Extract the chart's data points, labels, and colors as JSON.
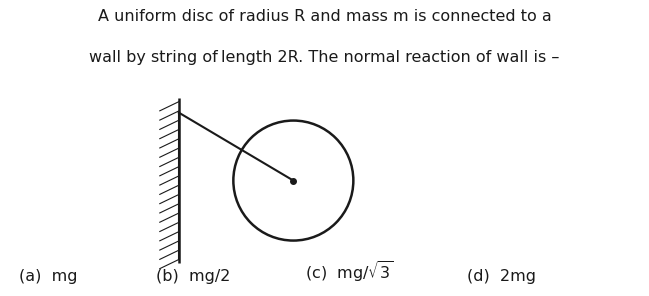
{
  "bg_color": "#ffffff",
  "line_color": "#1a1a1a",
  "text_color": "#1a1a1a",
  "title_line1": "A uniform disc of radius R and mass m is connected to a",
  "title_line2": "wall by string of length 2R. The normal reaction of wall is –",
  "title_fontsize": 11.5,
  "answer_fontsize": 11.5,
  "answer_a": "(a)  mg",
  "answer_b": "(b)  mg/2",
  "answer_c": "(c)  mg/",
  "answer_c_sqrt": "3",
  "answer_d": "(d)  2mg",
  "fig_width": 6.49,
  "fig_height": 2.96,
  "dpi": 100
}
